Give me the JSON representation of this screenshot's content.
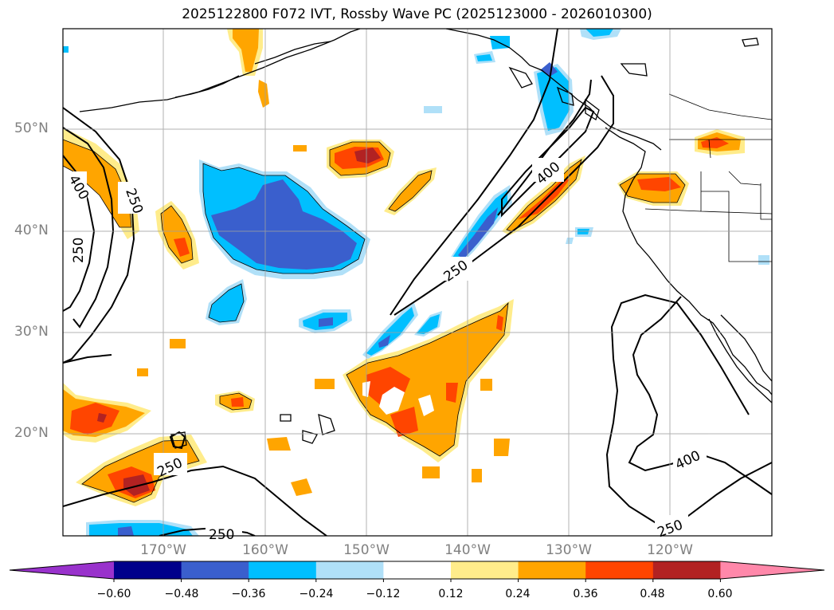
{
  "title": "2025122800 F072 IVT, Rossby Wave PC (2025123000 - 2026010300)",
  "lat_labels": [
    "50°N",
    "40°N",
    "30°N",
    "20°N"
  ],
  "lon_labels": [
    "170°W",
    "160°W",
    "150°W",
    "140°W",
    "130°W",
    "120°W"
  ],
  "contour_labels": [
    "400",
    "250",
    "250",
    "400",
    "250",
    "250",
    "400",
    "250",
    "250"
  ],
  "colorbar": {
    "tick_labels": [
      "−0.60",
      "−0.48",
      "−0.36",
      "−0.24",
      "−0.12",
      "0.12",
      "0.24",
      "0.36",
      "0.48",
      "0.60"
    ],
    "colors": [
      "#9932cc",
      "#00008b",
      "#3a5fcd",
      "#00bfff",
      "#b0e0f8",
      "#ffffff",
      "#ffec8b",
      "#ffa500",
      "#ff4500",
      "#b22222",
      "#ff88aa"
    ]
  }
}
